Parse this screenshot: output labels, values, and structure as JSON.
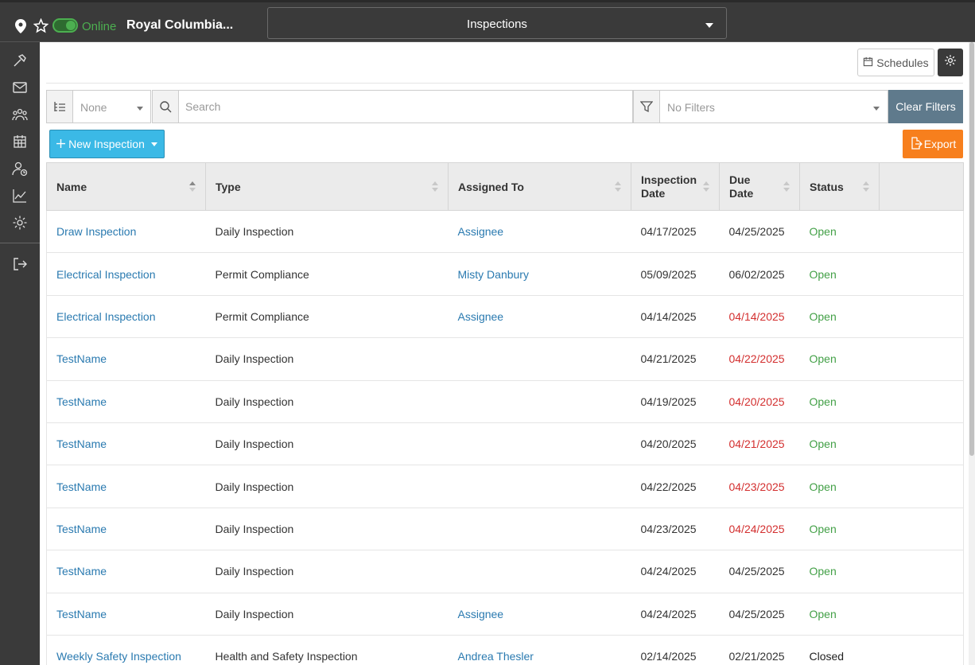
{
  "topbar": {
    "status": "Online",
    "project": "Royal Columbia...",
    "module": "Inspections"
  },
  "toolbar": {
    "schedules_label": "Schedules"
  },
  "filters": {
    "group_by": "None",
    "search_placeholder": "Search",
    "filters_value": "No Filters",
    "clear_label": "Clear Filters"
  },
  "actions": {
    "new_label": "New Inspection",
    "export_label": "Export"
  },
  "table": {
    "columns": [
      {
        "label": "Name"
      },
      {
        "label": "Type"
      },
      {
        "label": "Assigned To"
      },
      {
        "label": "Inspection Date"
      },
      {
        "label": "Due Date"
      },
      {
        "label": "Status"
      }
    ],
    "rows": [
      {
        "name": "Draw Inspection",
        "type": "Daily Inspection",
        "assigned": "Assignee",
        "inspection_date": "04/17/2025",
        "due_date": "04/25/2025",
        "overdue": false,
        "status": "Open"
      },
      {
        "name": "Electrical Inspection",
        "type": "Permit Compliance",
        "assigned": "Misty Danbury",
        "inspection_date": "05/09/2025",
        "due_date": "06/02/2025",
        "overdue": false,
        "status": "Open"
      },
      {
        "name": "Electrical Inspection",
        "type": "Permit Compliance",
        "assigned": "Assignee",
        "inspection_date": "04/14/2025",
        "due_date": "04/14/2025",
        "overdue": true,
        "status": "Open"
      },
      {
        "name": "TestName",
        "type": "Daily Inspection",
        "assigned": "",
        "inspection_date": "04/21/2025",
        "due_date": "04/22/2025",
        "overdue": true,
        "status": "Open"
      },
      {
        "name": "TestName",
        "type": "Daily Inspection",
        "assigned": "",
        "inspection_date": "04/19/2025",
        "due_date": "04/20/2025",
        "overdue": true,
        "status": "Open"
      },
      {
        "name": "TestName",
        "type": "Daily Inspection",
        "assigned": "",
        "inspection_date": "04/20/2025",
        "due_date": "04/21/2025",
        "overdue": true,
        "status": "Open"
      },
      {
        "name": "TestName",
        "type": "Daily Inspection",
        "assigned": "",
        "inspection_date": "04/22/2025",
        "due_date": "04/23/2025",
        "overdue": true,
        "status": "Open"
      },
      {
        "name": "TestName",
        "type": "Daily Inspection",
        "assigned": "",
        "inspection_date": "04/23/2025",
        "due_date": "04/24/2025",
        "overdue": true,
        "status": "Open"
      },
      {
        "name": "TestName",
        "type": "Daily Inspection",
        "assigned": "",
        "inspection_date": "04/24/2025",
        "due_date": "04/25/2025",
        "overdue": false,
        "status": "Open"
      },
      {
        "name": "TestName",
        "type": "Daily Inspection",
        "assigned": "Assignee",
        "inspection_date": "04/24/2025",
        "due_date": "04/25/2025",
        "overdue": false,
        "status": "Open"
      },
      {
        "name": "Weekly Safety Inspection",
        "type": "Health and Safety Inspection",
        "assigned": "Andrea Thesler",
        "inspection_date": "02/14/2025",
        "due_date": "02/21/2025",
        "overdue": false,
        "status": "Closed"
      }
    ]
  },
  "colors": {
    "link": "#2a7ab0",
    "overdue": "#d32f2f",
    "open": "#43a047",
    "primary": "#3bb9e6",
    "export": "#f77f1d",
    "clear": "#5f7a8c",
    "chrome": "#3a3a3a"
  }
}
